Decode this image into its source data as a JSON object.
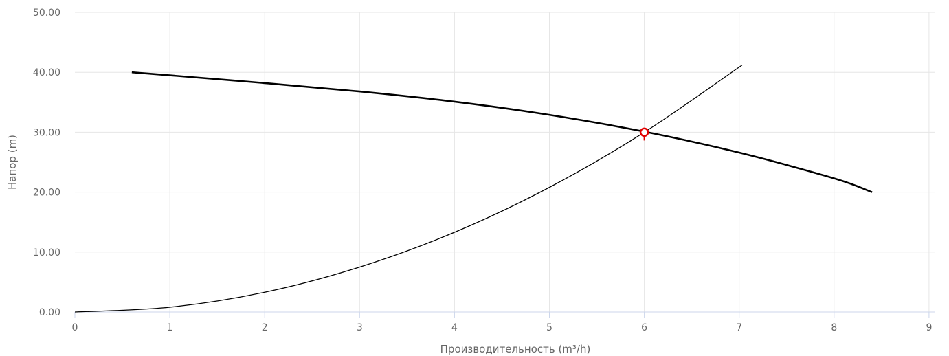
{
  "chart_data": {
    "type": "line",
    "title": "",
    "xlabel": "Производительность (m³/h)",
    "ylabel": "Напор (m)",
    "xlim": [
      0,
      9.2
    ],
    "ylim": [
      0,
      50
    ],
    "x_ticks": [
      0,
      1,
      2,
      3,
      4,
      5,
      6,
      7,
      8,
      9
    ],
    "x_tick_labels": [
      "0",
      "1",
      "2",
      "3",
      "4",
      "5",
      "6",
      "7",
      "8",
      "9"
    ],
    "y_ticks": [
      0,
      10,
      20,
      30,
      40,
      50
    ],
    "y_tick_labels": [
      "0.00",
      "10.00",
      "20.00",
      "30.00",
      "40.00",
      "50.00"
    ],
    "grid": true,
    "series": [
      {
        "color": "#000000",
        "x": [
          0.6,
          1,
          2,
          3,
          4,
          5,
          6,
          7,
          8,
          8.4
        ],
        "y": [
          40,
          39.5,
          38.2,
          36.8,
          35.1,
          32.9,
          30.1,
          26.6,
          22.3,
          20
        ]
      },
      {
        "color": "#000000",
        "x": [
          0,
          1,
          2,
          3,
          4,
          5,
          6,
          7.03
        ],
        "y": [
          0,
          0.8,
          3.3,
          7.5,
          13.3,
          20.8,
          30,
          41.2
        ]
      }
    ],
    "operating_point": {
      "x": 6,
      "y": 30,
      "color": "#e00000"
    }
  }
}
